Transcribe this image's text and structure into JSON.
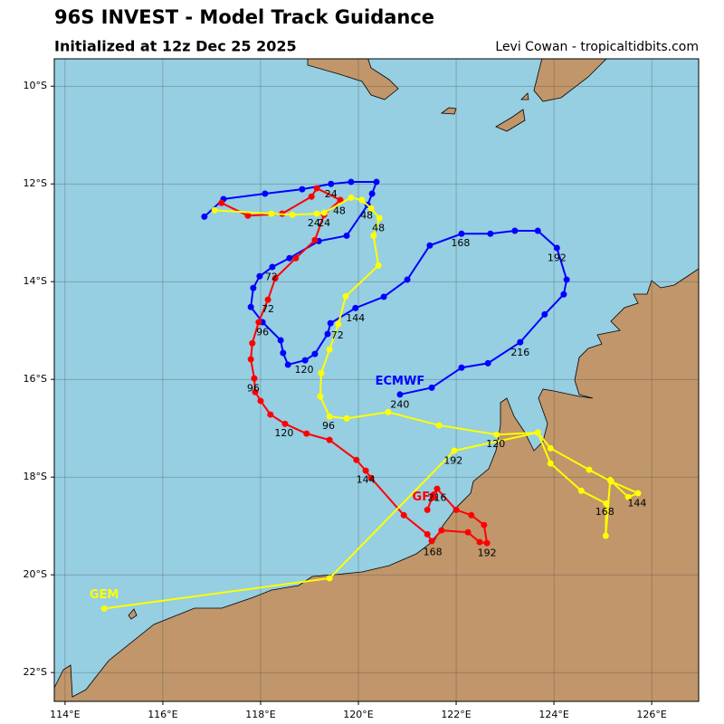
{
  "chart_data": {
    "type": "track-map",
    "title": "96S INVEST - Model Track Guidance",
    "subtitle": "Initialized at 12z Dec 25 2025",
    "credit": "Levi Cowan - tropicaltidbits.com",
    "xlim": [
      113.78,
      126.96
    ],
    "ylim": [
      -22.59,
      -9.44
    ],
    "xticks": [
      {
        "value": 114,
        "label": "114°E"
      },
      {
        "value": 116,
        "label": "116°E"
      },
      {
        "value": 118,
        "label": "118°E"
      },
      {
        "value": 120,
        "label": "120°E"
      },
      {
        "value": 122,
        "label": "122°E"
      },
      {
        "value": 124,
        "label": "124°E"
      },
      {
        "value": 126,
        "label": "126°E"
      }
    ],
    "yticks": [
      {
        "value": -10,
        "label": "10°S"
      },
      {
        "value": -12,
        "label": "12°S"
      },
      {
        "value": -14,
        "label": "14°S"
      },
      {
        "value": -16,
        "label": "16°S"
      },
      {
        "value": -18,
        "label": "18°S"
      },
      {
        "value": -20,
        "label": "20°S"
      },
      {
        "value": -22,
        "label": "22°S"
      }
    ],
    "grid": true,
    "series": [
      {
        "name": "ECMWF",
        "color": "#0000ff",
        "label_lon": 120.85,
        "label_lat": -16.04,
        "lon": [
          116.85,
          117.24,
          118.09,
          118.85,
          119.44,
          119.85,
          120.37,
          120.28,
          120.19,
          119.76,
          119.19,
          118.59,
          118.24,
          117.98,
          117.85,
          117.8,
          118.04,
          118.41,
          118.46,
          118.56,
          118.91,
          119.11,
          119.37,
          119.43,
          119.94,
          120.52,
          121.0,
          121.46,
          122.11,
          122.7,
          123.2,
          123.67,
          124.06,
          124.26,
          124.2,
          123.81,
          123.31,
          122.65,
          122.11,
          121.5,
          120.85
        ],
        "lat": [
          -12.67,
          -12.31,
          -12.2,
          -12.11,
          -12.0,
          -11.96,
          -11.96,
          -12.2,
          -12.43,
          -13.06,
          -13.17,
          -13.52,
          -13.7,
          -13.89,
          -14.13,
          -14.52,
          -14.83,
          -15.2,
          -15.46,
          -15.7,
          -15.61,
          -15.48,
          -15.07,
          -14.85,
          -14.54,
          -14.31,
          -13.96,
          -13.26,
          -13.02,
          -13.02,
          -12.96,
          -12.96,
          -13.31,
          -13.96,
          -14.26,
          -14.67,
          -15.24,
          -15.67,
          -15.76,
          -16.17,
          -16.31
        ]
      },
      {
        "name": "GFS",
        "color": "#ff0000",
        "label_lon": 121.37,
        "label_lat": -18.41,
        "lon": [
          117.2,
          117.74,
          118.44,
          119.04,
          119.15,
          119.63,
          119.3,
          119.11,
          118.72,
          118.3,
          118.15,
          117.96,
          117.83,
          117.8,
          117.87,
          117.89,
          118.0,
          118.2,
          118.5,
          118.94,
          119.41,
          119.96,
          120.15,
          120.26,
          120.93,
          121.41,
          121.5,
          121.7,
          122.24,
          122.48,
          122.63,
          122.57,
          122.31,
          122.0,
          121.61,
          121.52,
          121.41
        ],
        "lat": [
          -12.39,
          -12.65,
          -12.61,
          -12.26,
          -12.09,
          -12.33,
          -12.63,
          -13.15,
          -13.52,
          -13.93,
          -14.37,
          -14.83,
          -15.26,
          -15.59,
          -15.98,
          -16.26,
          -16.44,
          -16.72,
          -16.91,
          -17.11,
          -17.24,
          -17.65,
          -17.87,
          -18.02,
          -18.78,
          -19.17,
          -19.31,
          -19.09,
          -19.13,
          -19.33,
          -19.35,
          -18.98,
          -18.78,
          -18.67,
          -18.24,
          -18.39,
          -18.67
        ]
      },
      {
        "name": "GEM",
        "color": "#ffff00",
        "label_lon": 114.8,
        "label_lat": -20.41,
        "lon": [
          117.06,
          118.22,
          118.65,
          119.15,
          119.3,
          119.85,
          120.07,
          120.26,
          120.43,
          120.31,
          120.41,
          119.74,
          119.59,
          119.41,
          119.24,
          119.22,
          119.41,
          119.76,
          120.61,
          121.65,
          122.83,
          123.67,
          123.93,
          124.72,
          125.17,
          125.72,
          125.52,
          125.15,
          125.06,
          125.07,
          124.56,
          123.93,
          123.67,
          121.96,
          119.41,
          114.8
        ],
        "lat": [
          -12.54,
          -12.61,
          -12.63,
          -12.61,
          -12.59,
          -12.28,
          -12.33,
          -12.5,
          -12.7,
          -13.06,
          -13.67,
          -14.3,
          -14.87,
          -15.39,
          -15.87,
          -16.35,
          -16.76,
          -16.8,
          -16.67,
          -16.94,
          -17.13,
          -17.09,
          -17.41,
          -17.85,
          -18.09,
          -18.33,
          -18.41,
          -18.06,
          -19.2,
          -18.54,
          -18.28,
          -17.72,
          -17.09,
          -17.46,
          -20.07,
          -20.69
        ]
      }
    ],
    "annotations": [
      {
        "text": "24",
        "lon": 119.44,
        "lat": -12.22
      },
      {
        "text": "24",
        "lon": 119.09,
        "lat": -12.81
      },
      {
        "text": "24",
        "lon": 119.3,
        "lat": -12.81
      },
      {
        "text": "48",
        "lon": 119.61,
        "lat": -12.56
      },
      {
        "text": "48",
        "lon": 120.17,
        "lat": -12.65
      },
      {
        "text": "48",
        "lon": 120.41,
        "lat": -12.91
      },
      {
        "text": "72",
        "lon": 118.22,
        "lat": -13.91
      },
      {
        "text": "72",
        "lon": 118.15,
        "lat": -14.57
      },
      {
        "text": "72",
        "lon": 119.57,
        "lat": -15.11
      },
      {
        "text": "96",
        "lon": 118.04,
        "lat": -15.04
      },
      {
        "text": "96",
        "lon": 117.85,
        "lat": -16.19
      },
      {
        "text": "96",
        "lon": 119.39,
        "lat": -16.96
      },
      {
        "text": "120",
        "lon": 118.89,
        "lat": -15.81
      },
      {
        "text": "120",
        "lon": 118.48,
        "lat": -17.11
      },
      {
        "text": "120",
        "lon": 122.81,
        "lat": -17.33
      },
      {
        "text": "144",
        "lon": 119.94,
        "lat": -14.76
      },
      {
        "text": "144",
        "lon": 120.15,
        "lat": -18.06
      },
      {
        "text": "144",
        "lon": 125.7,
        "lat": -18.54
      },
      {
        "text": "168",
        "lon": 122.09,
        "lat": -13.22
      },
      {
        "text": "168",
        "lon": 121.52,
        "lat": -19.54
      },
      {
        "text": "168",
        "lon": 125.04,
        "lat": -18.72
      },
      {
        "text": "192",
        "lon": 124.06,
        "lat": -13.52
      },
      {
        "text": "192",
        "lon": 121.94,
        "lat": -17.67
      },
      {
        "text": "192",
        "lon": 122.63,
        "lat": -19.56
      },
      {
        "text": "216",
        "lon": 123.31,
        "lat": -15.46
      },
      {
        "text": "216",
        "lon": 121.61,
        "lat": -18.43
      },
      {
        "text": "240",
        "lon": 120.85,
        "lat": -16.52
      }
    ]
  }
}
